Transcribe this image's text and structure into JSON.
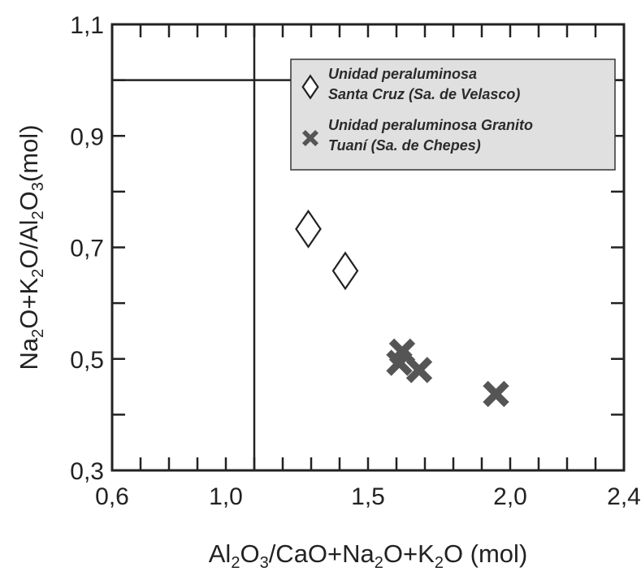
{
  "chart_data": {
    "type": "scatter",
    "xlabel": {
      "parts": [
        "Al",
        "2",
        "O",
        "3",
        "/CaO+Na",
        "2",
        "O+K",
        "2",
        "O (mol)"
      ]
    },
    "ylabel": {
      "parts": [
        "Na",
        "2",
        "O+K",
        "2",
        "O/Al",
        "2",
        "O",
        "3",
        "(mol)"
      ]
    },
    "xlim": [
      0.6,
      2.4
    ],
    "ylim": [
      0.3,
      1.1
    ],
    "x_ticks": [
      {
        "value": 0.6,
        "label": "0,6"
      },
      {
        "value": 1.0,
        "label": "1,0"
      },
      {
        "value": 1.5,
        "label": "1,5"
      },
      {
        "value": 2.0,
        "label": "2,0"
      },
      {
        "value": 2.4,
        "label": "2,4"
      }
    ],
    "y_ticks": [
      {
        "value": 0.3,
        "label": "0,3"
      },
      {
        "value": 0.5,
        "label": "0,5"
      },
      {
        "value": 0.7,
        "label": "0,7"
      },
      {
        "value": 0.9,
        "label": "0,9"
      },
      {
        "value": 1.1,
        "label": "1,1"
      }
    ],
    "x_minor_step": 0.1,
    "y_minor_step": 0.1,
    "reference_lines": [
      {
        "orientation": "vertical",
        "value": 1.1
      },
      {
        "orientation": "horizontal",
        "value": 1.0
      }
    ],
    "legend_position": "top-right",
    "series": [
      {
        "name_lines": [
          "Unidad peraluminosa",
          "Santa Cruz (Sa. de Velasco)"
        ],
        "marker": "diamond-open",
        "color": "#222222",
        "points": [
          [
            1.29,
            0.733
          ],
          [
            1.42,
            0.658
          ]
        ]
      },
      {
        "name_lines": [
          "Unidad peraluminosa Granito",
          "Tuaní (Sa. de Chepes)"
        ],
        "marker": "x-bold",
        "color": "#555555",
        "points": [
          [
            1.62,
            0.513
          ],
          [
            1.61,
            0.493
          ],
          [
            1.68,
            0.48
          ],
          [
            1.95,
            0.437
          ]
        ]
      }
    ]
  }
}
